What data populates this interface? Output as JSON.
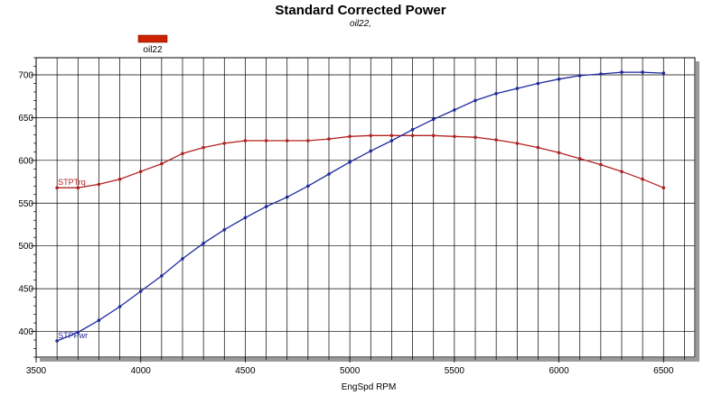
{
  "chart_data": {
    "type": "line",
    "title": "Standard Corrected Power",
    "subtitle": "oil22,",
    "xlabel": "EngSpd  RPM",
    "ylabel": "",
    "xlim": [
      3500,
      6650
    ],
    "ylim": [
      370,
      720
    ],
    "x_ticks": [
      3500,
      4000,
      4500,
      5000,
      5500,
      6000,
      6500
    ],
    "y_ticks": [
      400,
      450,
      500,
      550,
      600,
      650,
      700
    ],
    "x_grid_step": 100,
    "grid": true,
    "legend": {
      "placement": "top-left",
      "entries": [
        {
          "label": "oil22",
          "color": "#cc2200"
        }
      ]
    },
    "x": [
      3600,
      3700,
      3800,
      3900,
      4000,
      4100,
      4200,
      4300,
      4400,
      4500,
      4600,
      4700,
      4800,
      4900,
      5000,
      5100,
      5200,
      5300,
      5400,
      5500,
      5600,
      5700,
      5800,
      5900,
      6000,
      6100,
      6200,
      6300,
      6400,
      6500
    ],
    "series": [
      {
        "name": "STPTrq",
        "color": "#b22222",
        "values": [
          568,
          568,
          572,
          578,
          587,
          596,
          608,
          615,
          620,
          623,
          623,
          623,
          623,
          625,
          628,
          629,
          629,
          629,
          629,
          628,
          627,
          624,
          620,
          615,
          609,
          602,
          595,
          587,
          578,
          568
        ]
      },
      {
        "name": "STPPwr",
        "color": "#1f2a9e",
        "values": [
          389,
          399,
          413,
          429,
          447,
          465,
          485,
          503,
          519,
          533,
          546,
          557,
          570,
          584,
          598,
          611,
          623,
          636,
          648,
          659,
          670,
          678,
          684,
          690,
          695,
          699,
          701,
          703,
          703,
          702
        ]
      }
    ]
  }
}
